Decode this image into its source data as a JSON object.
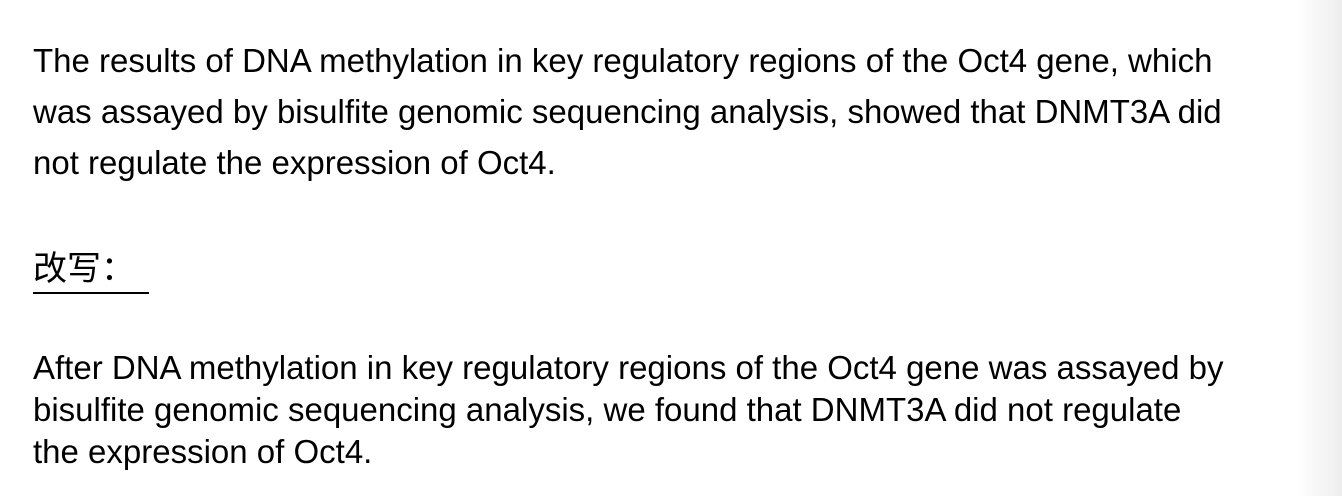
{
  "original": {
    "lines": [
      "The results of DNA methylation in key regulatory regions of the Oct4 gene, which",
      "was assayed by bisulfite genomic sequencing analysis, showed that DNMT3A did",
      "not regulate the expression of Oct4."
    ]
  },
  "rewrite_label": "改写：",
  "rewritten": {
    "lines": [
      "After DNA methylation in key regulatory regions of the Oct4 gene was assayed by",
      "bisulfite genomic sequencing analysis, we found that DNMT3A did not regulate",
      "the expression of Oct4."
    ]
  }
}
